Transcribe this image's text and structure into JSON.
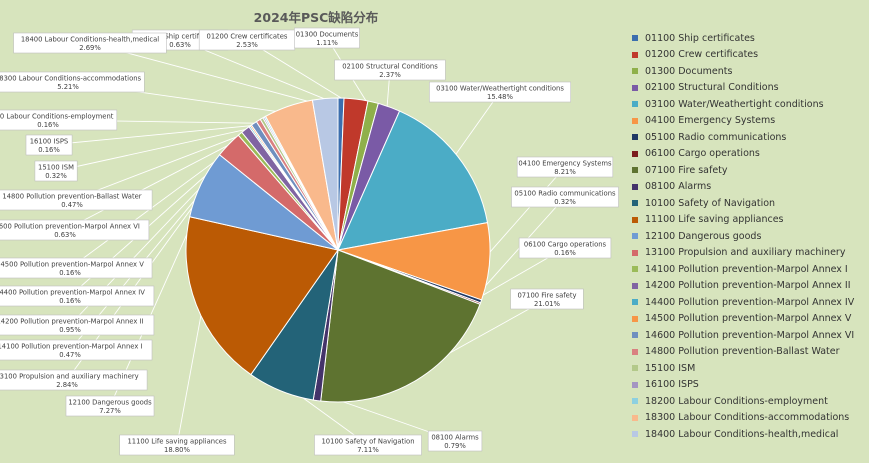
{
  "chart_data": {
    "type": "pie",
    "title": "2024年PSC缺陷分布",
    "legend_position": "right",
    "slices": [
      {
        "label": "01100 Ship certificates",
        "value": 0.63,
        "value_label": "0.63%",
        "color": "#3b6eae"
      },
      {
        "label": "01200 Crew certificates",
        "value": 2.53,
        "value_label": "2.53%",
        "color": "#c0392b"
      },
      {
        "label": "01300 Documents",
        "value": 1.11,
        "value_label": "1.11%",
        "color": "#8fb04a"
      },
      {
        "label": "02100 Structural Conditions",
        "value": 2.37,
        "value_label": "2.37%",
        "color": "#7a5aa6"
      },
      {
        "label": "03100 Water/Weathertight conditions",
        "value": 15.48,
        "value_label": "15.48%",
        "color": "#4bacc6"
      },
      {
        "label": "04100 Emergency Systems",
        "value": 8.21,
        "value_label": "8.21%",
        "color": "#f79646"
      },
      {
        "label": "05100 Radio communications",
        "value": 0.32,
        "value_label": "0.32%",
        "color": "#1f3864"
      },
      {
        "label": "06100 Cargo operations",
        "value": 0.16,
        "value_label": "0.16%",
        "color": "#7b1c1c"
      },
      {
        "label": "07100 Fire safety",
        "value": 21.01,
        "value_label": "21.01%",
        "color": "#5e7330"
      },
      {
        "label": "08100 Alarms",
        "value": 0.79,
        "value_label": "0.79%",
        "color": "#44336a"
      },
      {
        "label": "10100 Safety of Navigation",
        "value": 7.11,
        "value_label": "7.11%",
        "color": "#236378"
      },
      {
        "label": "11100 Life saving appliances",
        "value": 18.8,
        "value_label": "18.80%",
        "color": "#bb5a04"
      },
      {
        "label": "12100 Dangerous goods",
        "value": 7.27,
        "value_label": "7.27%",
        "color": "#6f9bd3"
      },
      {
        "label": "13100 Propulsion and auxiliary machinery",
        "value": 2.84,
        "value_label": "2.84%",
        "color": "#d46a6a"
      },
      {
        "label": "14100 Pollution prevention-Marpol Annex I",
        "value": 0.47,
        "value_label": "0.47%",
        "color": "#9bbb59"
      },
      {
        "label": "14200 Pollution prevention-Marpol Annex II",
        "value": 0.95,
        "value_label": "0.95%",
        "color": "#8064a2"
      },
      {
        "label": "14400 Pollution prevention-Marpol Annex IV",
        "value": 0.16,
        "value_label": "0.16%",
        "color": "#4bacc6"
      },
      {
        "label": "14500 Pollution prevention-Marpol Annex V",
        "value": 0.16,
        "value_label": "0.16%",
        "color": "#f79646"
      },
      {
        "label": "14600 Pollution prevention-Marpol Annex VI",
        "value": 0.63,
        "value_label": "0.63%",
        "color": "#6f8fbf"
      },
      {
        "label": "14800 Pollution prevention-Ballast Water",
        "value": 0.47,
        "value_label": "0.47%",
        "color": "#d98080"
      },
      {
        "label": "15100 ISM",
        "value": 0.32,
        "value_label": "0.32%",
        "color": "#b3c98a"
      },
      {
        "label": "16100 ISPS",
        "value": 0.16,
        "value_label": "0.16%",
        "color": "#a495c2"
      },
      {
        "label": "18200 Labour Conditions-employment",
        "value": 0.16,
        "value_label": "0.16%",
        "color": "#8dd0e0"
      },
      {
        "label": "18300 Labour Conditions-accommodations",
        "value": 5.21,
        "value_label": "5.21%",
        "color": "#f9b98c"
      },
      {
        "label": "18400 Labour Conditions-health,medical",
        "value": 2.69,
        "value_label": "2.69%",
        "color": "#b8c8e4"
      }
    ]
  }
}
